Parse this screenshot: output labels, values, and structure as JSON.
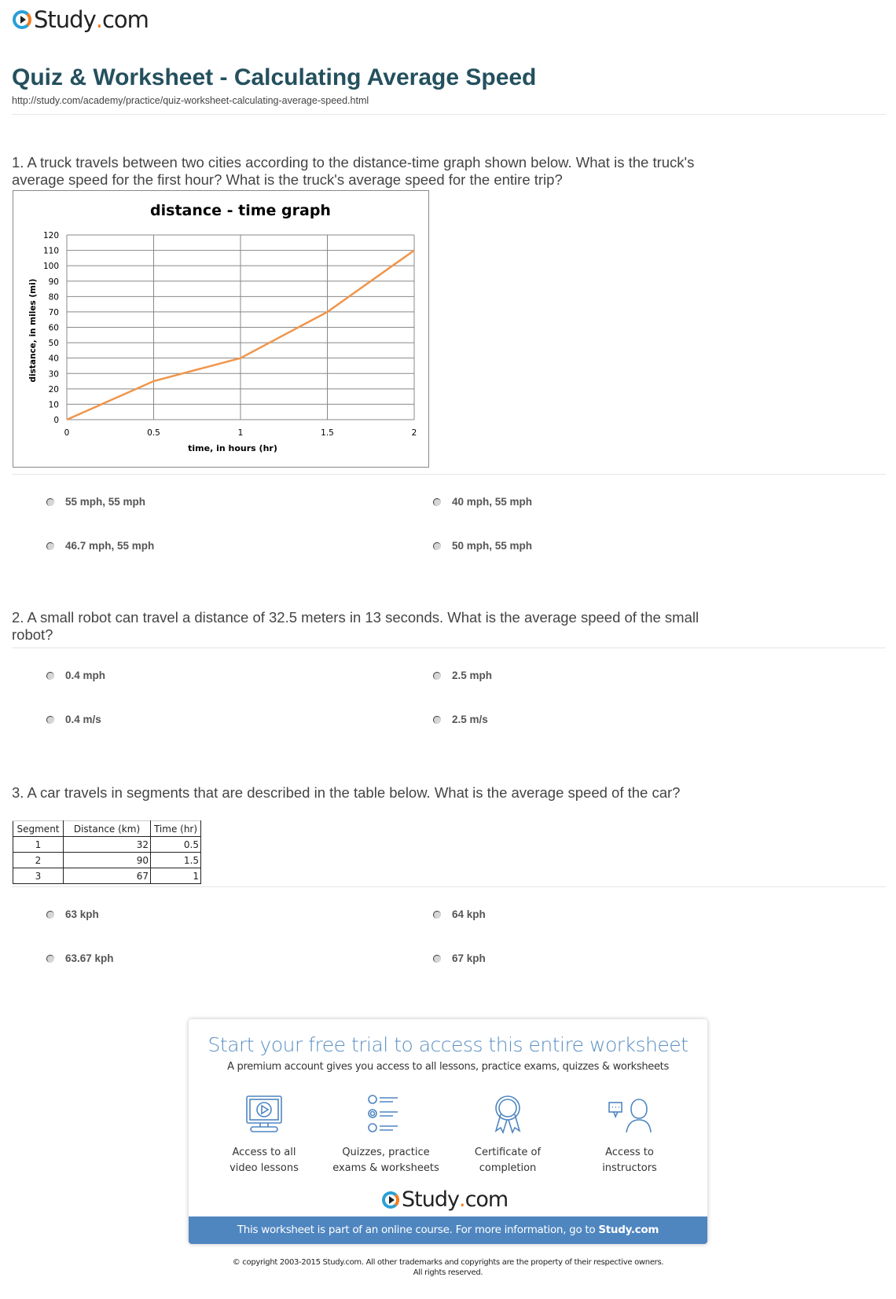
{
  "brand": {
    "name_main": "Study",
    "name_dot": ".",
    "name_tld": "com",
    "accent_blue": "#2a9fd6",
    "accent_orange": "#f47b20"
  },
  "page": {
    "title": "Quiz & Worksheet - Calculating Average Speed",
    "url": "http://study.com/academy/practice/quiz-worksheet-calculating-average-speed.html"
  },
  "questions": [
    {
      "text": "1. A truck travels between two cities according to the distance-time graph shown below. What is the truck's average speed for the first hour? What is the truck's average speed for the entire trip?",
      "answers": [
        "55 mph, 55 mph",
        "40 mph, 55 mph",
        "46.7 mph, 55 mph",
        "50 mph, 55 mph"
      ]
    },
    {
      "text": "2. A small robot can travel a distance of 32.5 meters in 13 seconds. What is the average speed of the small robot?",
      "answers": [
        "0.4 mph",
        "2.5 mph",
        "0.4 m/s",
        "2.5 m/s"
      ]
    },
    {
      "text": "3. A car travels in segments that are described in the table below. What is the average speed of the car?",
      "answers": [
        "63 kph",
        "64 kph",
        "63.67 kph",
        "67 kph"
      ]
    }
  ],
  "chart_data": {
    "type": "line",
    "title": "distance - time graph",
    "xlabel": "time, in hours (hr)",
    "ylabel": "distance, in miles (mi)",
    "xlim": [
      0,
      2
    ],
    "ylim": [
      0,
      120
    ],
    "xticks": [
      "0",
      "0.5",
      "1",
      "1.5",
      "2"
    ],
    "yticks": [
      "0",
      "10",
      "20",
      "30",
      "40",
      "50",
      "60",
      "70",
      "80",
      "90",
      "100",
      "110",
      "120"
    ],
    "grid": true,
    "line_color": "#f0954a",
    "x": [
      0,
      0.5,
      1,
      1.5,
      2
    ],
    "y": [
      0,
      25,
      40,
      70,
      110
    ]
  },
  "table": {
    "headers": [
      "Segment",
      "Distance (km)",
      "Time (hr)"
    ],
    "rows": [
      [
        "1",
        "32",
        "0.5"
      ],
      [
        "2",
        "90",
        "1.5"
      ],
      [
        "3",
        "67",
        "1"
      ]
    ]
  },
  "promo": {
    "title": "Start your free trial to access this entire worksheet",
    "subtitle": "A premium account gives you access to all lessons, practice exams, quizzes & worksheets",
    "features": [
      {
        "icon": "video-lesson-icon",
        "line1": "Access to all",
        "line2": "video lessons"
      },
      {
        "icon": "quiz-list-icon",
        "line1": "Quizzes, practice",
        "line2": "exams & worksheets"
      },
      {
        "icon": "certificate-icon",
        "line1": "Certificate of",
        "line2": "completion"
      },
      {
        "icon": "instructor-icon",
        "line1": "Access to",
        "line2": "instructors"
      }
    ],
    "band_text": "This worksheet is part of an online course. For more information, go to ",
    "band_link": "Study.com",
    "band_color": "#4f86c0"
  },
  "footer": {
    "copyright": "© copyright 2003-2015 Study.com. All other trademarks and copyrights are the property of their respective owners.",
    "rights": "All rights reserved."
  }
}
